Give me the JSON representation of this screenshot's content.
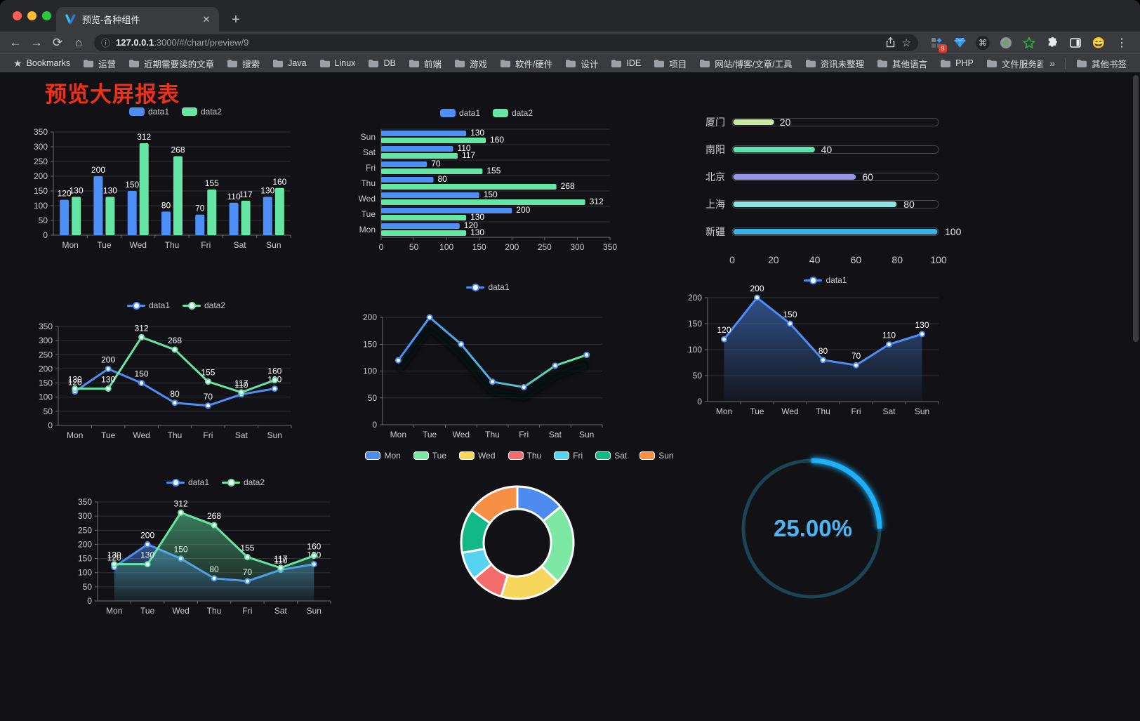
{
  "browser": {
    "tab_title": "预览-各种组件",
    "url_host": "127.0.0.1",
    "url_rest": ":3000/#/chart/preview/9",
    "bookmarks_label": "Bookmarks",
    "bookmarks": [
      "运营",
      "近期需要读的文章",
      "搜索",
      "Java",
      "Linux",
      "DB",
      "前端",
      "游戏",
      "软件/硬件",
      "设计",
      "IDE",
      "项目",
      "网站/博客/文章/工具",
      "资讯未整理",
      "其他语言",
      "PHP",
      "文件服务器"
    ],
    "overflow_glyph": "»",
    "other_bookmarks": "其他书签",
    "extension_badge": "9"
  },
  "icons": {
    "close": "✕",
    "plus": "+",
    "kebab": "⋮",
    "back": "←",
    "forward": "→",
    "reload": "⟳",
    "home": "⌂",
    "info": "ⓘ",
    "star": "☆",
    "bookmark_star": "★",
    "cmd": "⌘",
    "emoji_avatar": "😄"
  },
  "page": {
    "title": "预览大屏报表"
  },
  "colors": {
    "series_blue": "#4d8ef7",
    "series_green": "#66e6a4",
    "axis_text": "#c9ccd3",
    "grid": "#2d3037",
    "axis_line": "#6b6e76",
    "value_label": "#ffffff",
    "gauge_arc": "#1db0f8",
    "gauge_track": "#1d4452",
    "gauge_text": "#4db5f5",
    "title_red": "#ee3118"
  },
  "chart_data": [
    {
      "type": "bar",
      "title": "",
      "categories": [
        "Mon",
        "Tue",
        "Wed",
        "Thu",
        "Fri",
        "Sat",
        "Sun"
      ],
      "series": [
        {
          "name": "data1",
          "color": "#4d8ef7",
          "values": [
            120,
            200,
            150,
            80,
            70,
            110,
            130
          ]
        },
        {
          "name": "data2",
          "color": "#66e6a4",
          "values": [
            130,
            130,
            312,
            268,
            155,
            117,
            160
          ]
        }
      ],
      "ylim": [
        0,
        350
      ],
      "yticks": [
        0,
        50,
        100,
        150,
        200,
        250,
        300,
        350
      ],
      "grid": true,
      "legend_position": "top",
      "labels": true
    },
    {
      "type": "hbar",
      "title": "",
      "categories": [
        "Sun",
        "Sat",
        "Fri",
        "Thu",
        "Wed",
        "Tue",
        "Mon"
      ],
      "series": [
        {
          "name": "data1",
          "color": "#4d8ef7",
          "values": [
            130,
            110,
            70,
            80,
            150,
            200,
            120
          ]
        },
        {
          "name": "data2",
          "color": "#66e6a4",
          "values": [
            160,
            117,
            155,
            268,
            312,
            130,
            130
          ]
        }
      ],
      "xlim": [
        0,
        350
      ],
      "xticks": [
        0,
        50,
        100,
        150,
        200,
        250,
        300,
        350
      ],
      "grid": true,
      "legend_position": "top",
      "labels": true
    },
    {
      "type": "progress",
      "title": "",
      "items": [
        {
          "label": "厦门",
          "value": 20,
          "color": "#c9e8a0"
        },
        {
          "label": "南阳",
          "value": 40,
          "color": "#5fe3b1"
        },
        {
          "label": "北京",
          "value": 60,
          "color": "#9795e8"
        },
        {
          "label": "上海",
          "value": 80,
          "color": "#8be5e3"
        },
        {
          "label": "新疆",
          "value": 100,
          "color": "#3cb1e3"
        }
      ],
      "xlim": [
        0,
        100
      ],
      "xticks": [
        0,
        20,
        40,
        60,
        80,
        100
      ]
    },
    {
      "type": "line",
      "title": "",
      "categories": [
        "Mon",
        "Tue",
        "Wed",
        "Thu",
        "Fri",
        "Sat",
        "Sun"
      ],
      "series": [
        {
          "name": "data1",
          "color": "#4d8ef7",
          "values": [
            120,
            200,
            150,
            80,
            70,
            110,
            130
          ]
        },
        {
          "name": "data2",
          "color": "#66e6a4",
          "values": [
            130,
            130,
            312,
            268,
            155,
            117,
            160
          ]
        }
      ],
      "ylim": [
        0,
        350
      ],
      "yticks": [
        0,
        50,
        100,
        150,
        200,
        250,
        300,
        350
      ],
      "grid": true,
      "legend_position": "top",
      "labels": true,
      "area": false
    },
    {
      "type": "line",
      "title": "",
      "categories": [
        "Mon",
        "Tue",
        "Wed",
        "Thu",
        "Fri",
        "Sat",
        "Sun"
      ],
      "series": [
        {
          "name": "data1",
          "color": "#4d8ef7",
          "values": [
            120,
            200,
            150,
            80,
            70,
            110,
            130
          ]
        }
      ],
      "ylim": [
        0,
        200
      ],
      "yticks": [
        0,
        50,
        100,
        150,
        200
      ],
      "grid": true,
      "legend_position": "top",
      "labels": false,
      "area": false,
      "gradient_stroke": [
        "#4490f5",
        "#4ab9e0",
        "#63e6a0"
      ],
      "shadow": true
    },
    {
      "type": "line",
      "title": "",
      "categories": [
        "Mon",
        "Tue",
        "Wed",
        "Thu",
        "Fri",
        "Sat",
        "Sun"
      ],
      "series": [
        {
          "name": "data1",
          "color": "#4d8ef7",
          "values": [
            120,
            200,
            150,
            80,
            70,
            110,
            130
          ]
        }
      ],
      "ylim": [
        0,
        200
      ],
      "yticks": [
        0,
        50,
        100,
        150,
        200
      ],
      "grid": true,
      "legend_position": "top",
      "labels": true,
      "area": true
    },
    {
      "type": "line",
      "title": "",
      "categories": [
        "Mon",
        "Tue",
        "Wed",
        "Thu",
        "Fri",
        "Sat",
        "Sun"
      ],
      "series": [
        {
          "name": "data1",
          "color": "#4d8ef7",
          "values": [
            120,
            200,
            150,
            80,
            70,
            110,
            130
          ]
        },
        {
          "name": "data2",
          "color": "#66e6a4",
          "values": [
            130,
            130,
            312,
            268,
            155,
            117,
            160
          ]
        }
      ],
      "ylim": [
        0,
        350
      ],
      "yticks": [
        0,
        50,
        100,
        150,
        200,
        250,
        300,
        350
      ],
      "grid": true,
      "legend_position": "top",
      "labels": true,
      "area": true
    },
    {
      "type": "pie",
      "title": "",
      "categories": [
        "Mon",
        "Tue",
        "Wed",
        "Thu",
        "Fri",
        "Sat",
        "Sun"
      ],
      "values": [
        120,
        200,
        150,
        80,
        70,
        110,
        130
      ],
      "colors": [
        "#4e8bf0",
        "#7ce8a4",
        "#f7d65c",
        "#f56c6c",
        "#57d3f2",
        "#12b886",
        "#f78f45"
      ],
      "legend_position": "top",
      "donut": true
    },
    {
      "type": "gauge",
      "title": "",
      "value": 25,
      "display": "25.00%",
      "arc_color": "#1db0f8",
      "track_color": "#1d4452",
      "text_color": "#4db5f5"
    }
  ]
}
